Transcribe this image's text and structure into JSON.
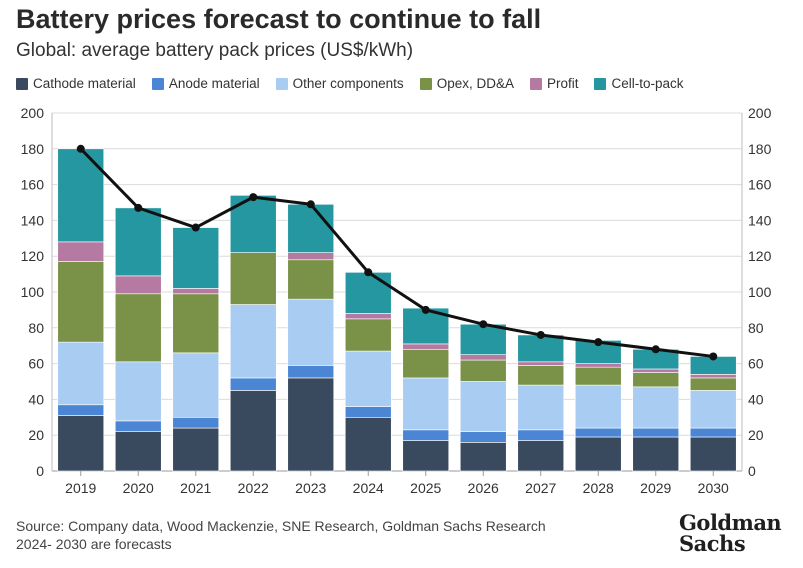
{
  "title": "Battery prices forecast to continue to fall",
  "subtitle": "Global: average battery pack prices (US$/kWh)",
  "footer": {
    "source": "Source: Company data, Wood Mackenzie, SNE Research, Goldman Sachs Research",
    "note": "2024- 2030 are forecasts"
  },
  "logo": {
    "line1": "Goldman",
    "line2": "Sachs"
  },
  "chart_data": {
    "type": "bar",
    "stacked": true,
    "categories": [
      "2019",
      "2020",
      "2021",
      "2022",
      "2023",
      "2024",
      "2025",
      "2026",
      "2027",
      "2028",
      "2029",
      "2030"
    ],
    "series": [
      {
        "name": "Cathode material",
        "color": "#3a4a5e",
        "values": [
          31,
          22,
          24,
          45,
          52,
          30,
          17,
          16,
          17,
          19,
          19,
          19
        ]
      },
      {
        "name": "Anode material",
        "color": "#4a86d4",
        "values": [
          6,
          6,
          6,
          7,
          7,
          6,
          6,
          6,
          6,
          5,
          5,
          5
        ]
      },
      {
        "name": "Other components",
        "color": "#a9ccf2",
        "values": [
          35,
          33,
          36,
          41,
          37,
          31,
          29,
          28,
          25,
          24,
          23,
          21
        ]
      },
      {
        "name": "Opex, DD&A",
        "color": "#7a9148",
        "values": [
          45,
          38,
          33,
          29,
          22,
          18,
          16,
          12,
          11,
          10,
          8,
          7
        ]
      },
      {
        "name": "Profit",
        "color": "#b57aa2",
        "values": [
          11,
          10,
          3,
          0,
          4,
          3,
          3,
          3,
          2,
          2,
          2,
          2
        ]
      },
      {
        "name": "Cell-to-pack",
        "color": "#2597a0",
        "values": [
          52,
          38,
          34,
          32,
          27,
          23,
          20,
          17,
          15,
          13,
          11,
          10
        ]
      }
    ],
    "line": {
      "values": [
        180,
        147,
        136,
        153,
        149,
        111,
        90,
        82,
        76,
        72,
        68,
        64
      ],
      "color": "#111111"
    },
    "ylim": [
      0,
      200
    ],
    "yticks": [
      0,
      20,
      40,
      60,
      80,
      100,
      120,
      140,
      160,
      180,
      200
    ],
    "secondary_axis": true,
    "grid": true,
    "legend_position": "top-left"
  }
}
